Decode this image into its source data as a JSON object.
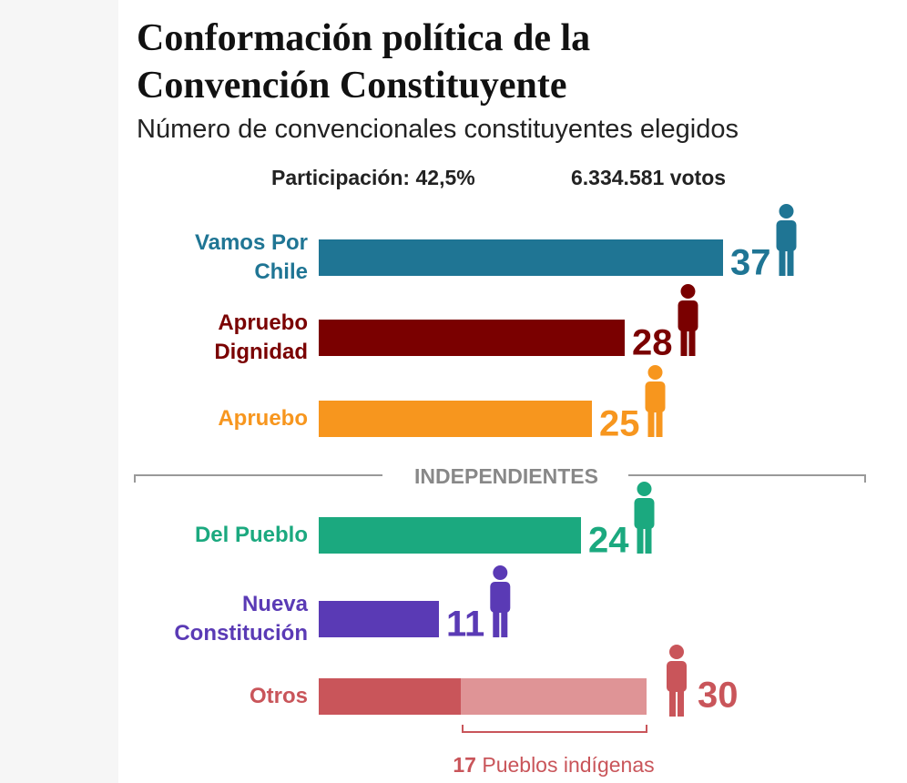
{
  "chart_data": {
    "type": "bar",
    "title": "Conformación política de la Convención Constituyente",
    "subtitle": "Número de convencionales constituyentes elegidos",
    "participation": "Participación: 42,5%",
    "votes": "6.334.581 votos",
    "group_label": "INDEPENDIENTES",
    "categories": [
      "Vamos Por Chile",
      "Apruebo Dignidad",
      "Apruebo",
      "Del Pueblo",
      "Nueva Constitución",
      "Otros"
    ],
    "values": [
      37,
      28,
      25,
      24,
      11,
      30
    ],
    "colors": [
      "#1f7594",
      "#7a0000",
      "#f7961e",
      "#1ba97f",
      "#5a3ab5",
      "#c9555a"
    ],
    "indigenous": {
      "value": 17,
      "label": "Pueblos indígenas",
      "color": "#df9496"
    }
  }
}
